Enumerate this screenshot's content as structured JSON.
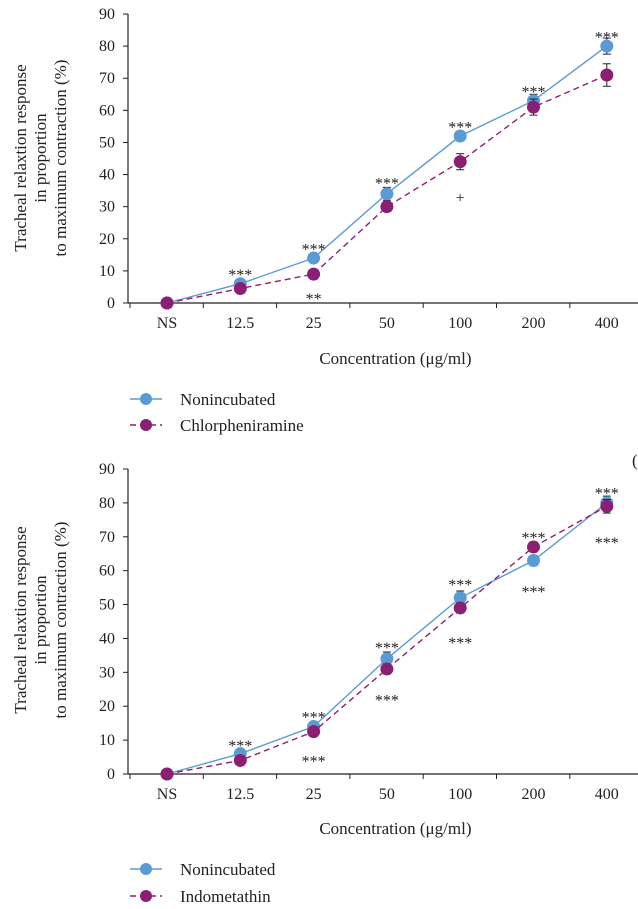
{
  "panel_labels": [
    "("
  ],
  "chart_data": [
    {
      "type": "line",
      "categories": [
        "NS",
        "12.5",
        "25",
        "50",
        "100",
        "200",
        "400"
      ],
      "xlabel": "Concentration (μg/ml)",
      "ylabel_lines": [
        "Tracheal relaxtion response",
        "in proportion",
        "to maximum contraction (%)"
      ],
      "ylim": [
        0,
        90
      ],
      "yticks": [
        0,
        10,
        20,
        30,
        40,
        50,
        60,
        70,
        80,
        90
      ],
      "legend_position": "bottom-left",
      "series": [
        {
          "name": "Nonincubated",
          "color": "#5b9bd5",
          "dashed": false,
          "values": [
            0,
            6,
            14,
            34,
            52,
            63,
            80
          ],
          "errors": [
            0,
            0.5,
            0.5,
            2,
            1.5,
            2,
            2.5
          ]
        },
        {
          "name": "Chlorpheniramine",
          "color": "#8b1f74",
          "dashed": true,
          "values": [
            0,
            4.5,
            9,
            30,
            44,
            61,
            71
          ],
          "errors": [
            0,
            0.5,
            0.5,
            1.5,
            2.5,
            2.5,
            3.5
          ]
        }
      ],
      "annotations": [
        {
          "category": "12.5",
          "y": 9,
          "text": "***"
        },
        {
          "category": "25",
          "y": 17,
          "text": "***"
        },
        {
          "category": "25",
          "y": 1.5,
          "text": "**"
        },
        {
          "category": "50",
          "y": 37.5,
          "text": "***"
        },
        {
          "category": "100",
          "y": 55,
          "text": "***"
        },
        {
          "category": "100",
          "y": 33,
          "text": "+"
        },
        {
          "category": "200",
          "y": 66,
          "text": "***"
        },
        {
          "category": "400",
          "y": 83,
          "text": "***"
        }
      ]
    },
    {
      "type": "line",
      "categories": [
        "NS",
        "12.5",
        "25",
        "50",
        "100",
        "200",
        "400"
      ],
      "xlabel": "Concentration (μg/ml)",
      "ylabel_lines": [
        "Tracheal relaxtion response",
        "in proportion",
        "to maximum contraction (%)"
      ],
      "ylim": [
        0,
        90
      ],
      "yticks": [
        0,
        10,
        20,
        30,
        40,
        50,
        60,
        70,
        80,
        90
      ],
      "legend_position": "bottom-left",
      "series": [
        {
          "name": "Nonincubated",
          "color": "#5b9bd5",
          "dashed": false,
          "values": [
            0,
            6,
            14,
            34,
            52,
            63,
            80
          ],
          "errors": [
            0,
            0.5,
            0.5,
            2,
            2,
            1.5,
            2
          ]
        },
        {
          "name": "Indometathin",
          "color": "#8b1f74",
          "dashed": true,
          "values": [
            0,
            4,
            12.5,
            31,
            49,
            67,
            79
          ],
          "errors": [
            0,
            0.5,
            0.5,
            1.5,
            1.5,
            1.5,
            2
          ]
        }
      ],
      "annotations": [
        {
          "category": "12.5",
          "y": 8.5,
          "text": "***"
        },
        {
          "category": "25",
          "y": 17,
          "text": "***"
        },
        {
          "category": "25",
          "y": 4,
          "text": "***"
        },
        {
          "category": "50",
          "y": 37.5,
          "text": "***"
        },
        {
          "category": "50",
          "y": 22,
          "text": "***"
        },
        {
          "category": "100",
          "y": 56,
          "text": "***"
        },
        {
          "category": "100",
          "y": 39,
          "text": "***"
        },
        {
          "category": "200",
          "y": 70,
          "text": "***"
        },
        {
          "category": "200",
          "y": 54,
          "text": "***"
        },
        {
          "category": "400",
          "y": 83,
          "text": "***"
        },
        {
          "category": "400",
          "y": 68.5,
          "text": "***"
        }
      ]
    }
  ]
}
